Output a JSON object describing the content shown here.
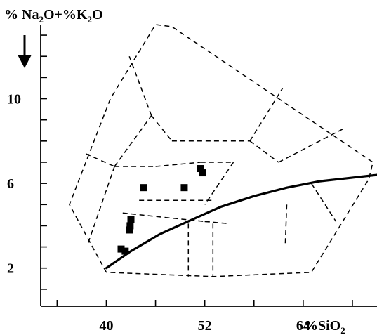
{
  "chart_data": {
    "type": "scatter",
    "title": "",
    "ylabel_parts": {
      "pre1": "% Na",
      "sub1": "2",
      "mid": "O+%K",
      "sub2": "2",
      "post": "O"
    },
    "xlabel_parts": {
      "pre": "%SiO",
      "sub": "2"
    },
    "x_ticks": [
      40,
      52,
      64
    ],
    "y_ticks": [
      2,
      6,
      10
    ],
    "xlim": [
      32,
      73
    ],
    "ylim": [
      0.2,
      13.5
    ],
    "samples": [
      {
        "x": 44.5,
        "y": 5.8
      },
      {
        "x": 49.5,
        "y": 5.8
      },
      {
        "x": 51.5,
        "y": 6.7
      },
      {
        "x": 51.7,
        "y": 6.5
      },
      {
        "x": 43.0,
        "y": 4.3
      },
      {
        "x": 42.9,
        "y": 4.0
      },
      {
        "x": 42.8,
        "y": 3.8
      },
      {
        "x": 41.8,
        "y": 2.9
      },
      {
        "x": 42.3,
        "y": 2.8
      }
    ],
    "alkaline_subalkaline_divider": [
      [
        40.0,
        2.0
      ],
      [
        43.0,
        2.8
      ],
      [
        46.5,
        3.6
      ],
      [
        50.5,
        4.3
      ],
      [
        54.0,
        4.9
      ],
      [
        58.0,
        5.4
      ],
      [
        62.0,
        5.8
      ],
      [
        66.0,
        6.1
      ],
      [
        73.0,
        6.4
      ]
    ],
    "field_boundaries": [
      [
        [
          40.0,
          1.8
        ],
        [
          35.5,
          5.0
        ],
        [
          40.5,
          10.0
        ],
        [
          46.0,
          13.5
        ],
        [
          48.0,
          13.4
        ],
        [
          72.5,
          7.0
        ],
        [
          72.0,
          6.2
        ],
        [
          65.0,
          1.8
        ],
        [
          53.0,
          1.6
        ],
        [
          40.0,
          1.8
        ]
      ],
      [
        [
          37.5,
          7.4
        ],
        [
          41.0,
          6.8
        ]
      ],
      [
        [
          41.0,
          6.8
        ],
        [
          37.8,
          3.2
        ]
      ],
      [
        [
          41.0,
          6.8
        ],
        [
          45.5,
          9.2
        ]
      ],
      [
        [
          45.5,
          9.2
        ],
        [
          42.8,
          12.0
        ]
      ],
      [
        [
          45.5,
          9.2
        ],
        [
          48.0,
          8.0
        ]
      ],
      [
        [
          48.0,
          8.0
        ],
        [
          57.5,
          8.0
        ]
      ],
      [
        [
          57.5,
          8.0
        ],
        [
          61.5,
          10.5
        ]
      ],
      [
        [
          57.5,
          8.0
        ],
        [
          61.0,
          7.0
        ]
      ],
      [
        [
          61.0,
          7.0
        ],
        [
          69.0,
          8.6
        ]
      ],
      [
        [
          41.0,
          6.8
        ],
        [
          46.0,
          6.8
        ]
      ],
      [
        [
          46.0,
          6.8
        ],
        [
          51.5,
          7.0
        ]
      ],
      [
        [
          51.5,
          7.0
        ],
        [
          55.5,
          7.0
        ]
      ],
      [
        [
          55.5,
          7.0
        ],
        [
          52.0,
          5.0
        ]
      ],
      [
        [
          44.0,
          5.2
        ],
        [
          53.0,
          5.2
        ]
      ],
      [
        [
          42.0,
          4.6
        ],
        [
          52.0,
          4.2
        ]
      ],
      [
        [
          52.0,
          4.2
        ],
        [
          53.0,
          4.2
        ]
      ],
      [
        [
          52.0,
          4.2
        ],
        [
          55.0,
          4.1
        ]
      ],
      [
        [
          50.0,
          4.1
        ],
        [
          50.0,
          1.6
        ]
      ],
      [
        [
          53.0,
          4.1
        ],
        [
          53.0,
          1.6
        ]
      ],
      [
        [
          62.0,
          5.0
        ],
        [
          61.8,
          3.0
        ]
      ],
      [
        [
          65.0,
          6.0
        ],
        [
          68.0,
          4.2
        ]
      ]
    ]
  }
}
